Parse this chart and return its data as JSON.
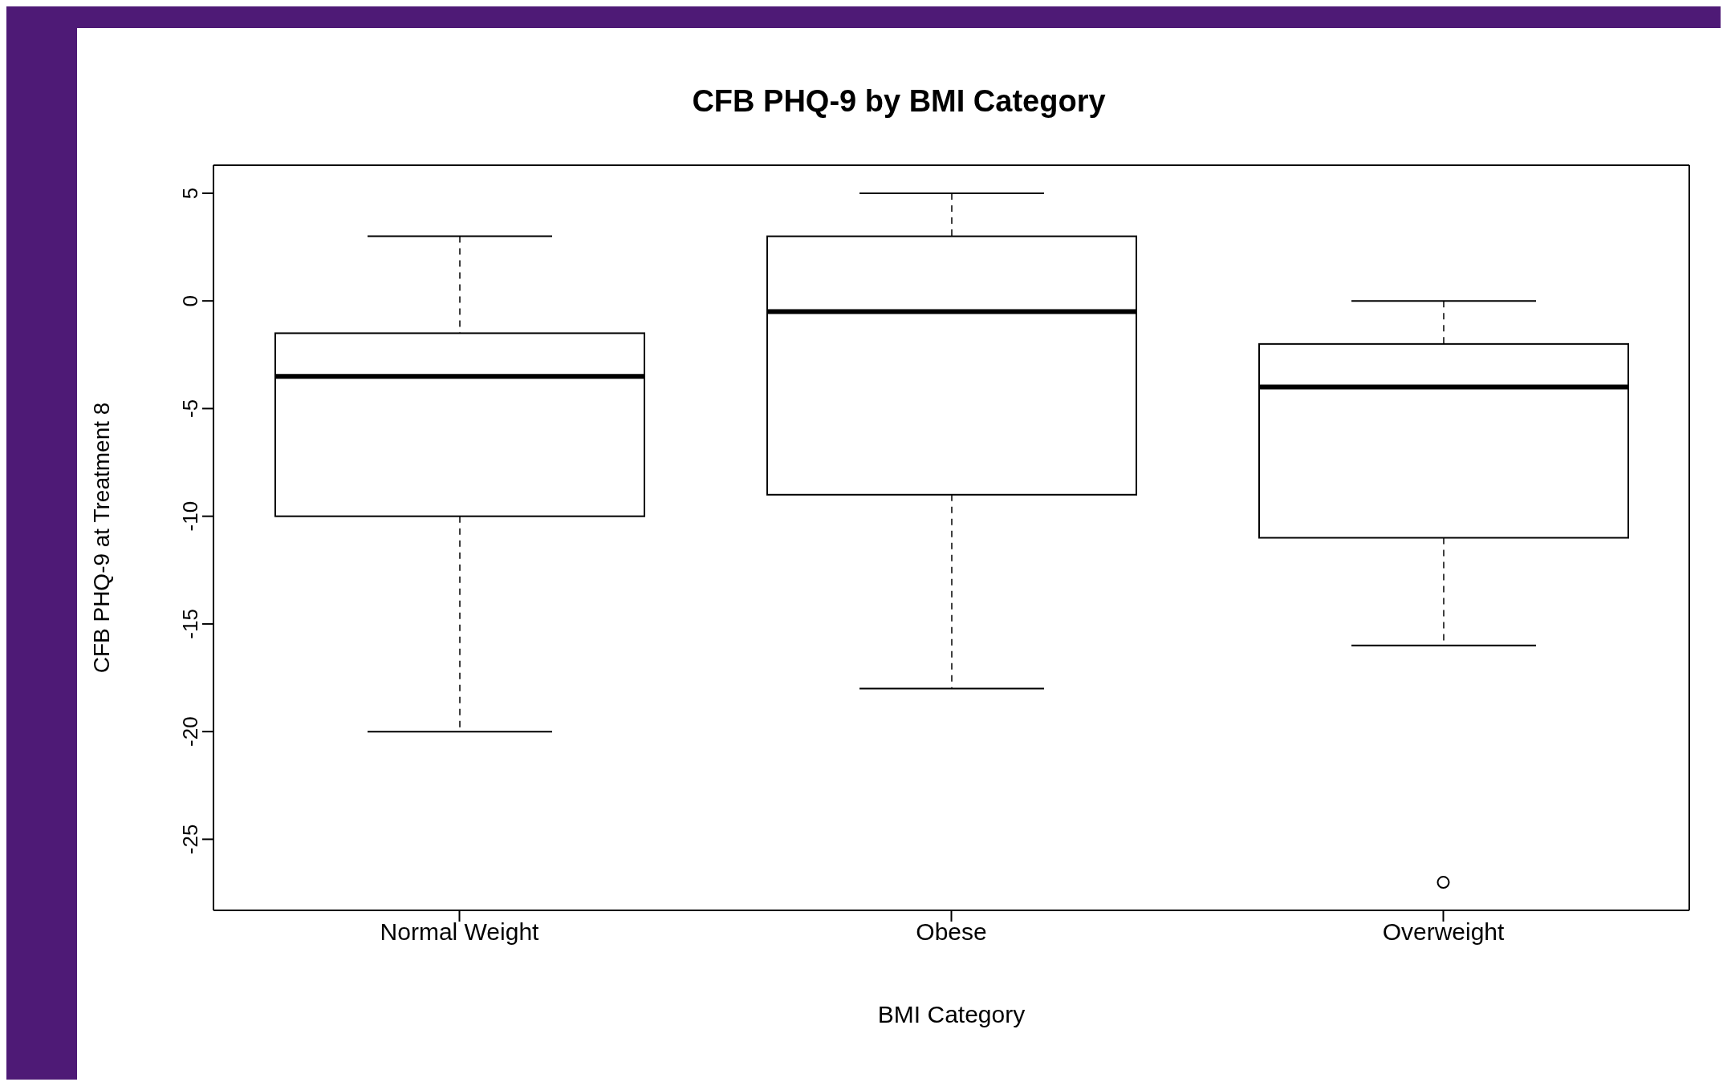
{
  "chart_data": {
    "type": "box",
    "title": "CFB PHQ-9 by BMI Category",
    "xlabel": "BMI Category",
    "ylabel": "CFB PHQ-9 at Treatment 8",
    "categories": [
      "Normal Weight",
      "Obese",
      "Overweight"
    ],
    "boxes": [
      {
        "low": -20,
        "q1": -10,
        "median": -3.5,
        "q3": -1.5,
        "high": 3
      },
      {
        "low": -18,
        "q1": -9,
        "median": -0.5,
        "q3": 3,
        "high": 5
      },
      {
        "low": -16,
        "q1": -11,
        "median": -4,
        "q3": -2,
        "high": 0,
        "outliers": [
          -27
        ]
      }
    ],
    "ylim": [
      -28.3,
      6.3
    ],
    "yticks": [
      -25,
      -20,
      -15,
      -10,
      -5,
      0,
      5
    ]
  }
}
